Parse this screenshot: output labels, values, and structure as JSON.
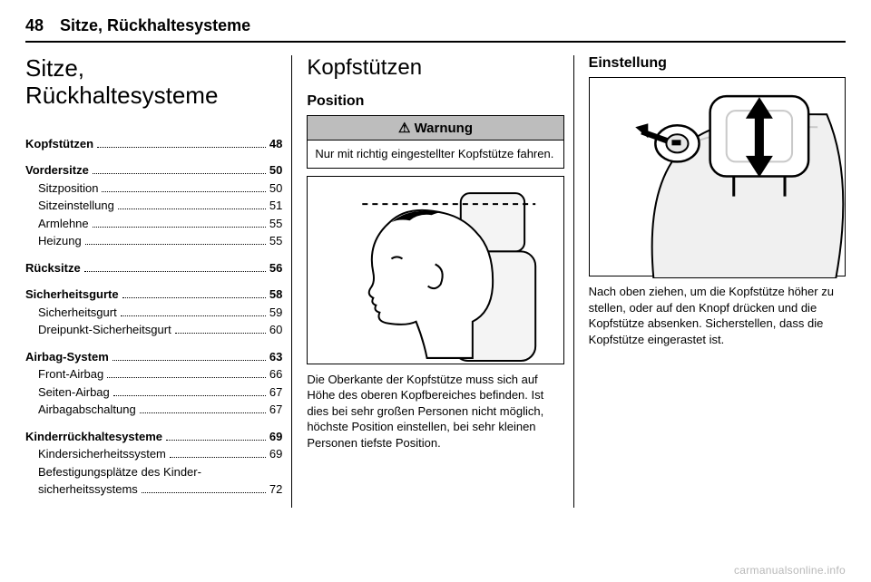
{
  "header": {
    "page_number": "48",
    "running_title": "Sitze, Rückhaltesysteme"
  },
  "col1": {
    "chapter_title": "Sitze, Rückhaltesysteme",
    "toc": [
      {
        "type": "group",
        "items": [
          {
            "label": "Kopfstützen",
            "page": "48",
            "sub": false
          }
        ]
      },
      {
        "type": "group",
        "items": [
          {
            "label": "Vordersitze",
            "page": "50",
            "sub": false
          },
          {
            "label": "Sitzposition",
            "page": "50",
            "sub": true
          },
          {
            "label": "Sitzeinstellung",
            "page": "51",
            "sub": true
          },
          {
            "label": "Armlehne",
            "page": "55",
            "sub": true
          },
          {
            "label": "Heizung",
            "page": "55",
            "sub": true
          }
        ]
      },
      {
        "type": "group",
        "items": [
          {
            "label": "Rücksitze",
            "page": "56",
            "sub": false
          }
        ]
      },
      {
        "type": "group",
        "items": [
          {
            "label": "Sicherheitsgurte",
            "page": "58",
            "sub": false
          },
          {
            "label": "Sicherheitsgurt",
            "page": "59",
            "sub": true
          },
          {
            "label": "Dreipunkt-Sicherheitsgurt",
            "page": "60",
            "sub": true
          }
        ]
      },
      {
        "type": "group",
        "items": [
          {
            "label": "Airbag-System",
            "page": "63",
            "sub": false
          },
          {
            "label": "Front-Airbag",
            "page": "66",
            "sub": true
          },
          {
            "label": "Seiten-Airbag",
            "page": "67",
            "sub": true
          },
          {
            "label": "Airbagabschaltung",
            "page": "67",
            "sub": true
          }
        ]
      },
      {
        "type": "group",
        "items": [
          {
            "label": "Kinderrückhaltesysteme",
            "page": "69",
            "sub": false
          },
          {
            "label": "Kindersicherheitssystem",
            "page": "69",
            "sub": true
          },
          {
            "label": "Befestigungsplätze des Kinder-\nsicherheitssystems",
            "page": "72",
            "sub": true
          }
        ]
      }
    ]
  },
  "col2": {
    "section_title": "Kopfstützen",
    "sub1": "Position",
    "warning_label": "Warnung",
    "warning_symbol": "⚠",
    "warning_text": "Nur mit richtig eingestellter Kopfstütze fahren.",
    "caption": "Die Oberkante der Kopfstütze muss sich auf Höhe des oberen Kopfbereiches befinden. Ist dies bei sehr großen Personen nicht möglich, höchste Position einstellen, bei sehr kleinen Personen tiefste Position."
  },
  "col3": {
    "sub1": "Einstellung",
    "caption": "Nach oben ziehen, um die Kopfstütze höher zu stellen, oder auf den Knopf drücken und die Kopfstütze absenken. Sicherstellen, dass die Kopfstütze eingerastet ist."
  },
  "watermark": "carmanualsonline.info",
  "colors": {
    "rule": "#000000",
    "warn_head_bg": "#bdbdbd",
    "fig_fill": "#f4f4f4",
    "fig_shade": "#c9c9c9",
    "watermark": "#b8b8b8"
  }
}
